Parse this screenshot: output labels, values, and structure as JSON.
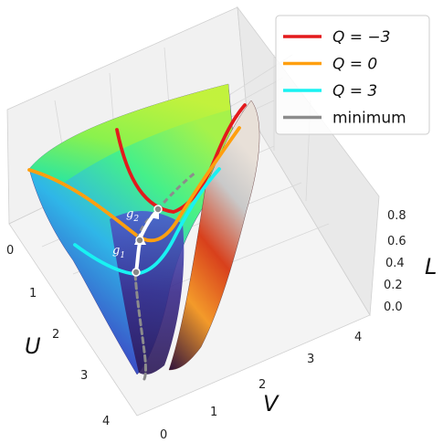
{
  "chart_data": {
    "type": "surface3d",
    "axes": {
      "u": {
        "label": "U",
        "ticks": [
          "0",
          "1",
          "2",
          "3",
          "4"
        ],
        "range": [
          0,
          4
        ]
      },
      "v": {
        "label": "V",
        "ticks": [
          "0",
          "1",
          "2",
          "3",
          "4"
        ],
        "range": [
          0,
          4
        ]
      },
      "l": {
        "label": "L",
        "ticks": [
          "0.0",
          "0.2",
          "0.4",
          "0.6",
          "0.8"
        ],
        "range": [
          0,
          0.9
        ]
      }
    },
    "legend": {
      "placement": "top-right",
      "entries": [
        {
          "label": "Q = −3",
          "color": "#e31a1c"
        },
        {
          "label": "Q = 0",
          "color": "#ff9f0f"
        },
        {
          "label": "Q = 3",
          "color": "#19f2f2"
        },
        {
          "label": "minimum",
          "color": "#8c8c8c"
        }
      ]
    },
    "series": [
      {
        "name": "Q = −3",
        "color": "#e31a1c",
        "points": [
          [
            1.5,
            0.08
          ],
          [
            1.85,
            0.3
          ],
          [
            2.05,
            0.55
          ],
          [
            2.25,
            0.78
          ]
        ]
      },
      {
        "name": "Q = 0",
        "color": "#ff9f0f",
        "points": [
          [
            0.5,
            0.1
          ],
          [
            1.2,
            0.35
          ],
          [
            1.6,
            0.5
          ],
          [
            1.9,
            0.45
          ],
          [
            2.3,
            0.4
          ]
        ]
      },
      {
        "name": "Q = 3",
        "color": "#19f2f2",
        "points": [
          [
            0.9,
            0.1
          ],
          [
            1.5,
            0.35
          ],
          [
            2.0,
            0.6
          ],
          [
            2.3,
            0.55
          ],
          [
            2.6,
            0.5
          ]
        ]
      },
      {
        "name": "minimum",
        "color": "#8c8c8c",
        "points": [
          [
            1.5,
            0.6
          ],
          [
            1.9,
            0.7
          ],
          [
            2.3,
            0.8
          ],
          [
            3.0,
            1.0
          ],
          [
            3.9,
            1.2
          ]
        ]
      }
    ],
    "points": [
      {
        "label": "g",
        "sub": "1"
      },
      {
        "label": "g",
        "sub": "2"
      }
    ],
    "grid": true,
    "colormap": [
      "#30123b",
      "#4662d7",
      "#36aaf9",
      "#1ae4b6",
      "#72fe5e",
      "#c7ef34",
      "#faba39",
      "#f66b19",
      "#ca2a04"
    ]
  }
}
